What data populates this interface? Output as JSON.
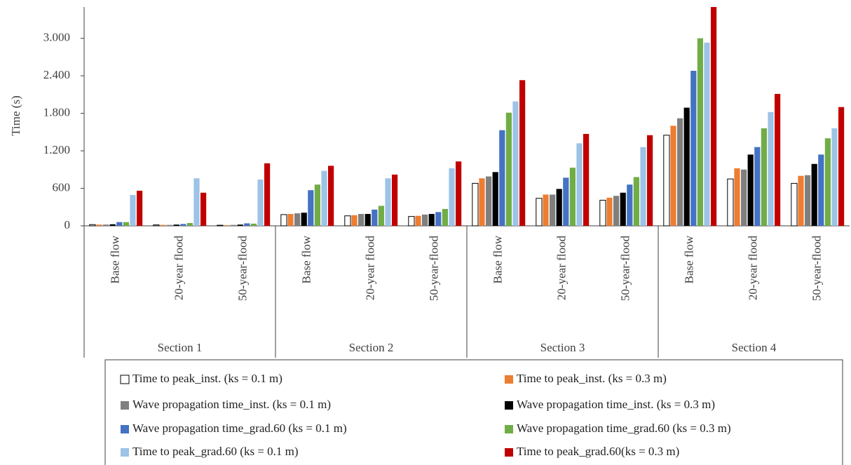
{
  "chart_data": {
    "type": "bar",
    "y_label": "Time (s)",
    "sections": [
      "Section 1",
      "Section 2",
      "Section 3",
      "Section 4"
    ],
    "categories": [
      "Base flow",
      "20-year flood",
      "50-year-flood",
      "Base flow",
      "20-year flood",
      "50-year-flood",
      "Base flow",
      "20-year flood",
      "50-year-flood",
      "Base flow",
      "20-year flood",
      "50-year-flood"
    ],
    "series": [
      {
        "name": "Time to peak_inst. (ks = 0.1 m)",
        "color": "#ffffff",
        "values": [
          20,
          15,
          10,
          180,
          160,
          150,
          680,
          440,
          410,
          1450,
          750,
          680
        ]
      },
      {
        "name": "Time to peak_inst. (ks = 0.3 m)",
        "color": "#ed7d31",
        "values": [
          20,
          15,
          10,
          190,
          170,
          160,
          760,
          500,
          450,
          1600,
          920,
          800
        ]
      },
      {
        "name": "Wave propagation time_inst. (ks = 0.1 m)",
        "color": "#7f7f7f",
        "values": [
          20,
          15,
          15,
          200,
          190,
          180,
          790,
          500,
          480,
          1720,
          900,
          810
        ]
      },
      {
        "name": "Wave propagation time_inst. (ks = 0.3 m)",
        "color": "#000000",
        "values": [
          25,
          20,
          20,
          210,
          190,
          190,
          860,
          590,
          530,
          1890,
          1140,
          990
        ]
      },
      {
        "name": "Wave propagation time_grad.60 (ks = 0.1 m)",
        "color": "#4472c4",
        "values": [
          60,
          30,
          40,
          570,
          260,
          220,
          1530,
          770,
          660,
          2480,
          1260,
          1140
        ]
      },
      {
        "name": "Wave propagation time_grad.60 (ks = 0.3 m)",
        "color": "#70ad47",
        "values": [
          60,
          45,
          35,
          660,
          320,
          270,
          1810,
          930,
          780,
          3000,
          1560,
          1400
        ]
      },
      {
        "name": "Time to peak_grad.60 (ks = 0.1 m)",
        "color": "#9dc3e6",
        "values": [
          494,
          760,
          740,
          880,
          760,
          920,
          1990,
          1320,
          1260,
          2930,
          1820,
          1560
        ]
      },
      {
        "name": "Time to peak_grad.60(ks = 0.3 m)",
        "color": "#c00000",
        "values": [
          562,
          530,
          1000,
          960,
          820,
          1030,
          2330,
          1470,
          1450,
          3500,
          2110,
          1900
        ]
      }
    ],
    "ylim": [
      0,
      3500
    ],
    "yticks": [
      0,
      600,
      {
        "value": 1200,
        "label": "1.200"
      },
      {
        "value": 1800,
        "label": "1.800"
      },
      {
        "value": 2400,
        "label": "2.400"
      },
      {
        "value": 3000,
        "label": "3.000"
      }
    ]
  }
}
